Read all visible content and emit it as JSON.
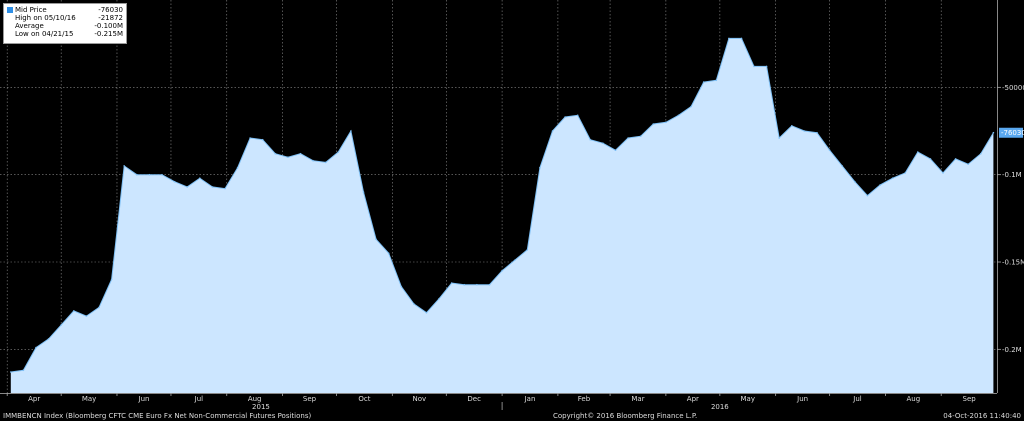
{
  "legend": {
    "rows": [
      {
        "label": "Mid Price",
        "value": "-76030"
      },
      {
        "label": "High on 05/10/16",
        "value": "-21872"
      },
      {
        "label": "Average",
        "value": "-0.100M"
      },
      {
        "label": "Low on 04/21/15",
        "value": "-0.215M"
      }
    ]
  },
  "footer": {
    "left": "IMMBENCN Index (Bloomberg CFTC CME Euro Fx Net Non-Commercial Futures Positions)",
    "center": "Copyright© 2016 Bloomberg Finance L.P.",
    "right": "04-Oct-2016 11:40:40"
  },
  "colors": {
    "background": "#000000",
    "area_fill": "#cce6ff",
    "line": "#7fc0f5",
    "last_price_label_bg": "#5aa8f0"
  },
  "chart_data": {
    "type": "area",
    "title": "",
    "series": [
      {
        "name": "Mid Price",
        "x": [
          "2015-04-03",
          "2015-04-10",
          "2015-04-17",
          "2015-04-24",
          "2015-05-01",
          "2015-05-08",
          "2015-05-15",
          "2015-05-22",
          "2015-05-29",
          "2015-06-05",
          "2015-06-12",
          "2015-06-19",
          "2015-06-26",
          "2015-07-03",
          "2015-07-10",
          "2015-07-17",
          "2015-07-24",
          "2015-07-31",
          "2015-08-07",
          "2015-08-14",
          "2015-08-21",
          "2015-08-28",
          "2015-09-04",
          "2015-09-11",
          "2015-09-18",
          "2015-09-25",
          "2015-10-02",
          "2015-10-09",
          "2015-10-16",
          "2015-10-23",
          "2015-10-30",
          "2015-11-06",
          "2015-11-13",
          "2015-11-20",
          "2015-11-27",
          "2015-12-04",
          "2015-12-11",
          "2015-12-18",
          "2015-12-25",
          "2016-01-01",
          "2016-01-08",
          "2016-01-15",
          "2016-01-22",
          "2016-01-29",
          "2016-02-05",
          "2016-02-12",
          "2016-02-19",
          "2016-02-26",
          "2016-03-04",
          "2016-03-11",
          "2016-03-18",
          "2016-03-25",
          "2016-04-01",
          "2016-04-08",
          "2016-04-15",
          "2016-04-22",
          "2016-04-29",
          "2016-05-06",
          "2016-05-13",
          "2016-05-20",
          "2016-05-27",
          "2016-06-03",
          "2016-06-10",
          "2016-06-17",
          "2016-06-24",
          "2016-07-01",
          "2016-07-08",
          "2016-07-15",
          "2016-07-22",
          "2016-07-29",
          "2016-08-05",
          "2016-08-12",
          "2016-08-19",
          "2016-08-26",
          "2016-09-02",
          "2016-09-09",
          "2016-09-16",
          "2016-09-23",
          "2016-09-30"
        ],
        "values": [
          -0.213,
          -0.212,
          -0.199,
          -0.194,
          -0.186,
          -0.178,
          -0.181,
          -0.176,
          -0.16,
          -0.095,
          -0.1,
          -0.1,
          -0.1,
          -0.104,
          -0.107,
          -0.102,
          -0.107,
          -0.108,
          -0.096,
          -0.079,
          -0.08,
          -0.088,
          -0.09,
          -0.088,
          -0.092,
          -0.093,
          -0.087,
          -0.075,
          -0.11,
          -0.137,
          -0.145,
          -0.164,
          -0.174,
          -0.179,
          -0.171,
          -0.162,
          -0.163,
          -0.163,
          -0.163,
          -0.155,
          -0.149,
          -0.143,
          -0.096,
          -0.075,
          -0.067,
          -0.066,
          -0.08,
          -0.082,
          -0.086,
          -0.079,
          -0.078,
          -0.071,
          -0.07,
          -0.066,
          -0.061,
          -0.047,
          -0.046,
          -0.022,
          -0.022,
          -0.038,
          -0.038,
          -0.079,
          -0.072,
          -0.075,
          -0.076,
          -0.086,
          -0.095,
          -0.104,
          -0.112,
          -0.106,
          -0.102,
          -0.099,
          -0.087,
          -0.091,
          -0.099,
          -0.091,
          -0.094,
          -0.088,
          -0.076
        ]
      }
    ],
    "ylim": [
      -0.225,
      0.0
    ],
    "y_ticks": [
      -0.2,
      -0.15,
      -0.1,
      -0.05
    ],
    "y_tick_labels": [
      "-0.2M",
      "-0.15M",
      "-0.1M",
      "-50000"
    ],
    "x_month_labels": [
      {
        "label": "Apr",
        "date": "2015-04-01"
      },
      {
        "label": "May",
        "date": "2015-05-01"
      },
      {
        "label": "Jun",
        "date": "2015-06-01"
      },
      {
        "label": "Jul",
        "date": "2015-07-01"
      },
      {
        "label": "Aug",
        "date": "2015-08-01"
      },
      {
        "label": "Sep",
        "date": "2015-09-01"
      },
      {
        "label": "Oct",
        "date": "2015-10-01"
      },
      {
        "label": "Nov",
        "date": "2015-11-01"
      },
      {
        "label": "Dec",
        "date": "2015-12-01"
      },
      {
        "label": "Jan",
        "date": "2016-01-01"
      },
      {
        "label": "Feb",
        "date": "2016-02-01"
      },
      {
        "label": "Mar",
        "date": "2016-03-01"
      },
      {
        "label": "Apr",
        "date": "2016-04-01"
      },
      {
        "label": "May",
        "date": "2016-05-01"
      },
      {
        "label": "Jun",
        "date": "2016-06-01"
      },
      {
        "label": "Jul",
        "date": "2016-07-01"
      },
      {
        "label": "Aug",
        "date": "2016-08-01"
      },
      {
        "label": "Sep",
        "date": "2016-09-01"
      }
    ],
    "x_year_labels": [
      {
        "label": "2015",
        "date": "2015-08-20"
      },
      {
        "label": "2016",
        "date": "2016-05-01"
      }
    ],
    "last_price_label": "-76030",
    "grid": true
  }
}
